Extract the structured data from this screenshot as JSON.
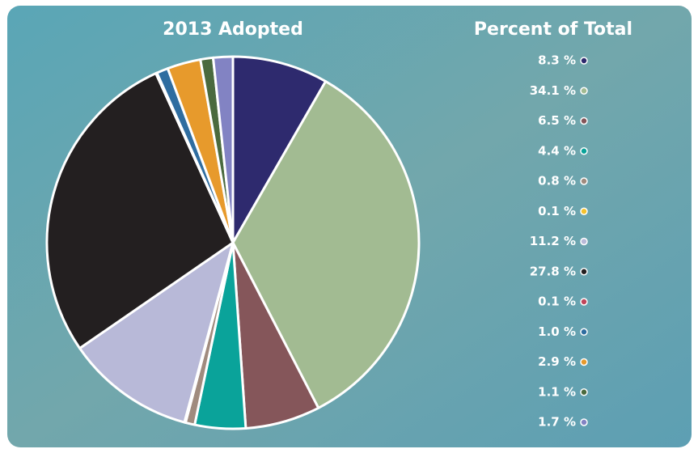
{
  "chart_data": {
    "type": "pie",
    "title": "2013 Adopted",
    "legend_title": "Percent of Total",
    "values": [
      8.3,
      34.1,
      6.5,
      4.4,
      0.8,
      0.1,
      11.2,
      27.8,
      0.1,
      1.0,
      2.9,
      1.1,
      1.7
    ],
    "value_labels": [
      "8.3 %",
      "34.1 %",
      "6.5 %",
      "4.4 %",
      "0.8 %",
      "0.1 %",
      "11.2 %",
      "27.8 %",
      "0.1 %",
      "1.0 %",
      "2.9 %",
      "1.1 %",
      "1.7 %"
    ],
    "colors": [
      "#2e2a6e",
      "#a2bb92",
      "#85565a",
      "#0aa39a",
      "#a08b7e",
      "#f5c22c",
      "#b8b9d8",
      "#231f20",
      "#c0455a",
      "#2f6da0",
      "#e79a2c",
      "#4a6a3e",
      "#8283c3"
    ],
    "legend": "right"
  }
}
